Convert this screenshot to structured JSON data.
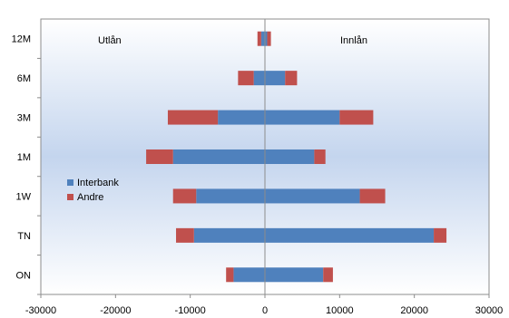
{
  "chart_data": {
    "type": "bar",
    "orientation": "horizontal",
    "stacked": true,
    "categories": [
      "ON",
      "TN",
      "1W",
      "1M",
      "3M",
      "6M",
      "12M"
    ],
    "series": [
      {
        "name": "Interbank",
        "color": "#4f81bd",
        "negative": [
          -4200,
          -9500,
          -9200,
          -12300,
          -6300,
          -1500,
          -500
        ],
        "positive": [
          7800,
          22600,
          12700,
          6600,
          10000,
          2700,
          300
        ]
      },
      {
        "name": "Andre",
        "color": "#c0504d",
        "negative": [
          -1000,
          -2400,
          -3100,
          -3600,
          -6700,
          -2100,
          -500
        ],
        "positive": [
          1300,
          1700,
          3400,
          1500,
          4500,
          1600,
          500
        ]
      }
    ],
    "xlim": [
      -30000,
      30000
    ],
    "xticks": [
      "-30000",
      "-20000",
      "-10000",
      "0",
      "10000",
      "20000",
      "30000"
    ],
    "annotations": [
      "Utlån",
      "Innlån"
    ],
    "legend": "left",
    "grid": false
  }
}
